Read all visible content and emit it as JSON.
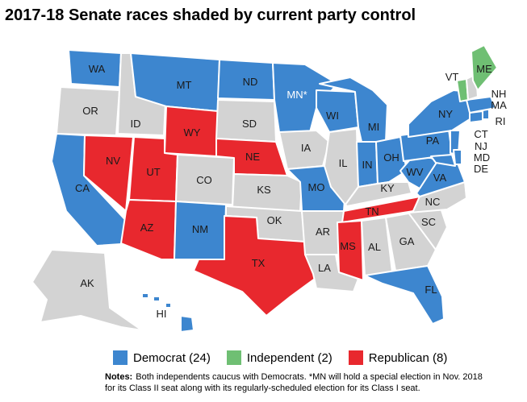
{
  "title": "2017-18 Senate races shaded by current party control",
  "colors": {
    "democrat": "#3d86cf",
    "independent": "#6fbf73",
    "republican": "#e8282e",
    "none": "#d3d3d3"
  },
  "legend": {
    "democrat": "Democrat (24)",
    "independent": "Independent (2)",
    "republican": "Republican (8)"
  },
  "notes": {
    "label": "Notes:",
    "line1": "Both independents caucus with Democrats. *MN will hold a special election in Nov. 2018",
    "line2": "for its Class II seat along with its regularly-scheduled election for its Class I seat."
  },
  "states": {
    "WA": {
      "label": "WA",
      "party": "democrat"
    },
    "OR": {
      "label": "OR",
      "party": "none"
    },
    "CA": {
      "label": "CA",
      "party": "democrat"
    },
    "NV": {
      "label": "NV",
      "party": "republican"
    },
    "ID": {
      "label": "ID",
      "party": "none"
    },
    "MT": {
      "label": "MT",
      "party": "democrat"
    },
    "WY": {
      "label": "WY",
      "party": "republican"
    },
    "UT": {
      "label": "UT",
      "party": "republican"
    },
    "AZ": {
      "label": "AZ",
      "party": "republican"
    },
    "CO": {
      "label": "CO",
      "party": "none"
    },
    "NM": {
      "label": "NM",
      "party": "democrat"
    },
    "ND": {
      "label": "ND",
      "party": "democrat"
    },
    "SD": {
      "label": "SD",
      "party": "none"
    },
    "NE": {
      "label": "NE",
      "party": "republican"
    },
    "KS": {
      "label": "KS",
      "party": "none"
    },
    "OK": {
      "label": "OK",
      "party": "none"
    },
    "TX": {
      "label": "TX",
      "party": "republican"
    },
    "MN": {
      "label": "MN*",
      "party": "democrat"
    },
    "IA": {
      "label": "IA",
      "party": "none"
    },
    "MO": {
      "label": "MO",
      "party": "democrat"
    },
    "AR": {
      "label": "AR",
      "party": "none"
    },
    "LA": {
      "label": "LA",
      "party": "none"
    },
    "WI": {
      "label": "WI",
      "party": "democrat"
    },
    "IL": {
      "label": "IL",
      "party": "none"
    },
    "MI": {
      "label": "MI",
      "party": "democrat"
    },
    "IN": {
      "label": "IN",
      "party": "democrat"
    },
    "OH": {
      "label": "OH",
      "party": "democrat"
    },
    "KY": {
      "label": "KY",
      "party": "none"
    },
    "TN": {
      "label": "TN",
      "party": "republican"
    },
    "MS": {
      "label": "MS",
      "party": "republican"
    },
    "AL": {
      "label": "AL",
      "party": "none"
    },
    "GA": {
      "label": "GA",
      "party": "none"
    },
    "FL": {
      "label": "FL",
      "party": "democrat"
    },
    "SC": {
      "label": "SC",
      "party": "none"
    },
    "NC": {
      "label": "NC",
      "party": "none"
    },
    "VA": {
      "label": "VA",
      "party": "democrat"
    },
    "WV": {
      "label": "WV",
      "party": "democrat"
    },
    "PA": {
      "label": "PA",
      "party": "democrat"
    },
    "NY": {
      "label": "NY",
      "party": "democrat"
    },
    "VT": {
      "label": "VT",
      "party": "independent"
    },
    "NH": {
      "label": "NH",
      "party": "none"
    },
    "ME": {
      "label": "ME",
      "party": "independent"
    },
    "MA": {
      "label": "MA",
      "party": "democrat"
    },
    "RI": {
      "label": "RI",
      "party": "democrat"
    },
    "CT": {
      "label": "CT",
      "party": "democrat"
    },
    "NJ": {
      "label": "NJ",
      "party": "democrat"
    },
    "MD": {
      "label": "MD",
      "party": "democrat"
    },
    "DE": {
      "label": "DE",
      "party": "democrat"
    },
    "AK": {
      "label": "AK",
      "party": "none"
    },
    "HI": {
      "label": "HI",
      "party": "democrat"
    }
  }
}
